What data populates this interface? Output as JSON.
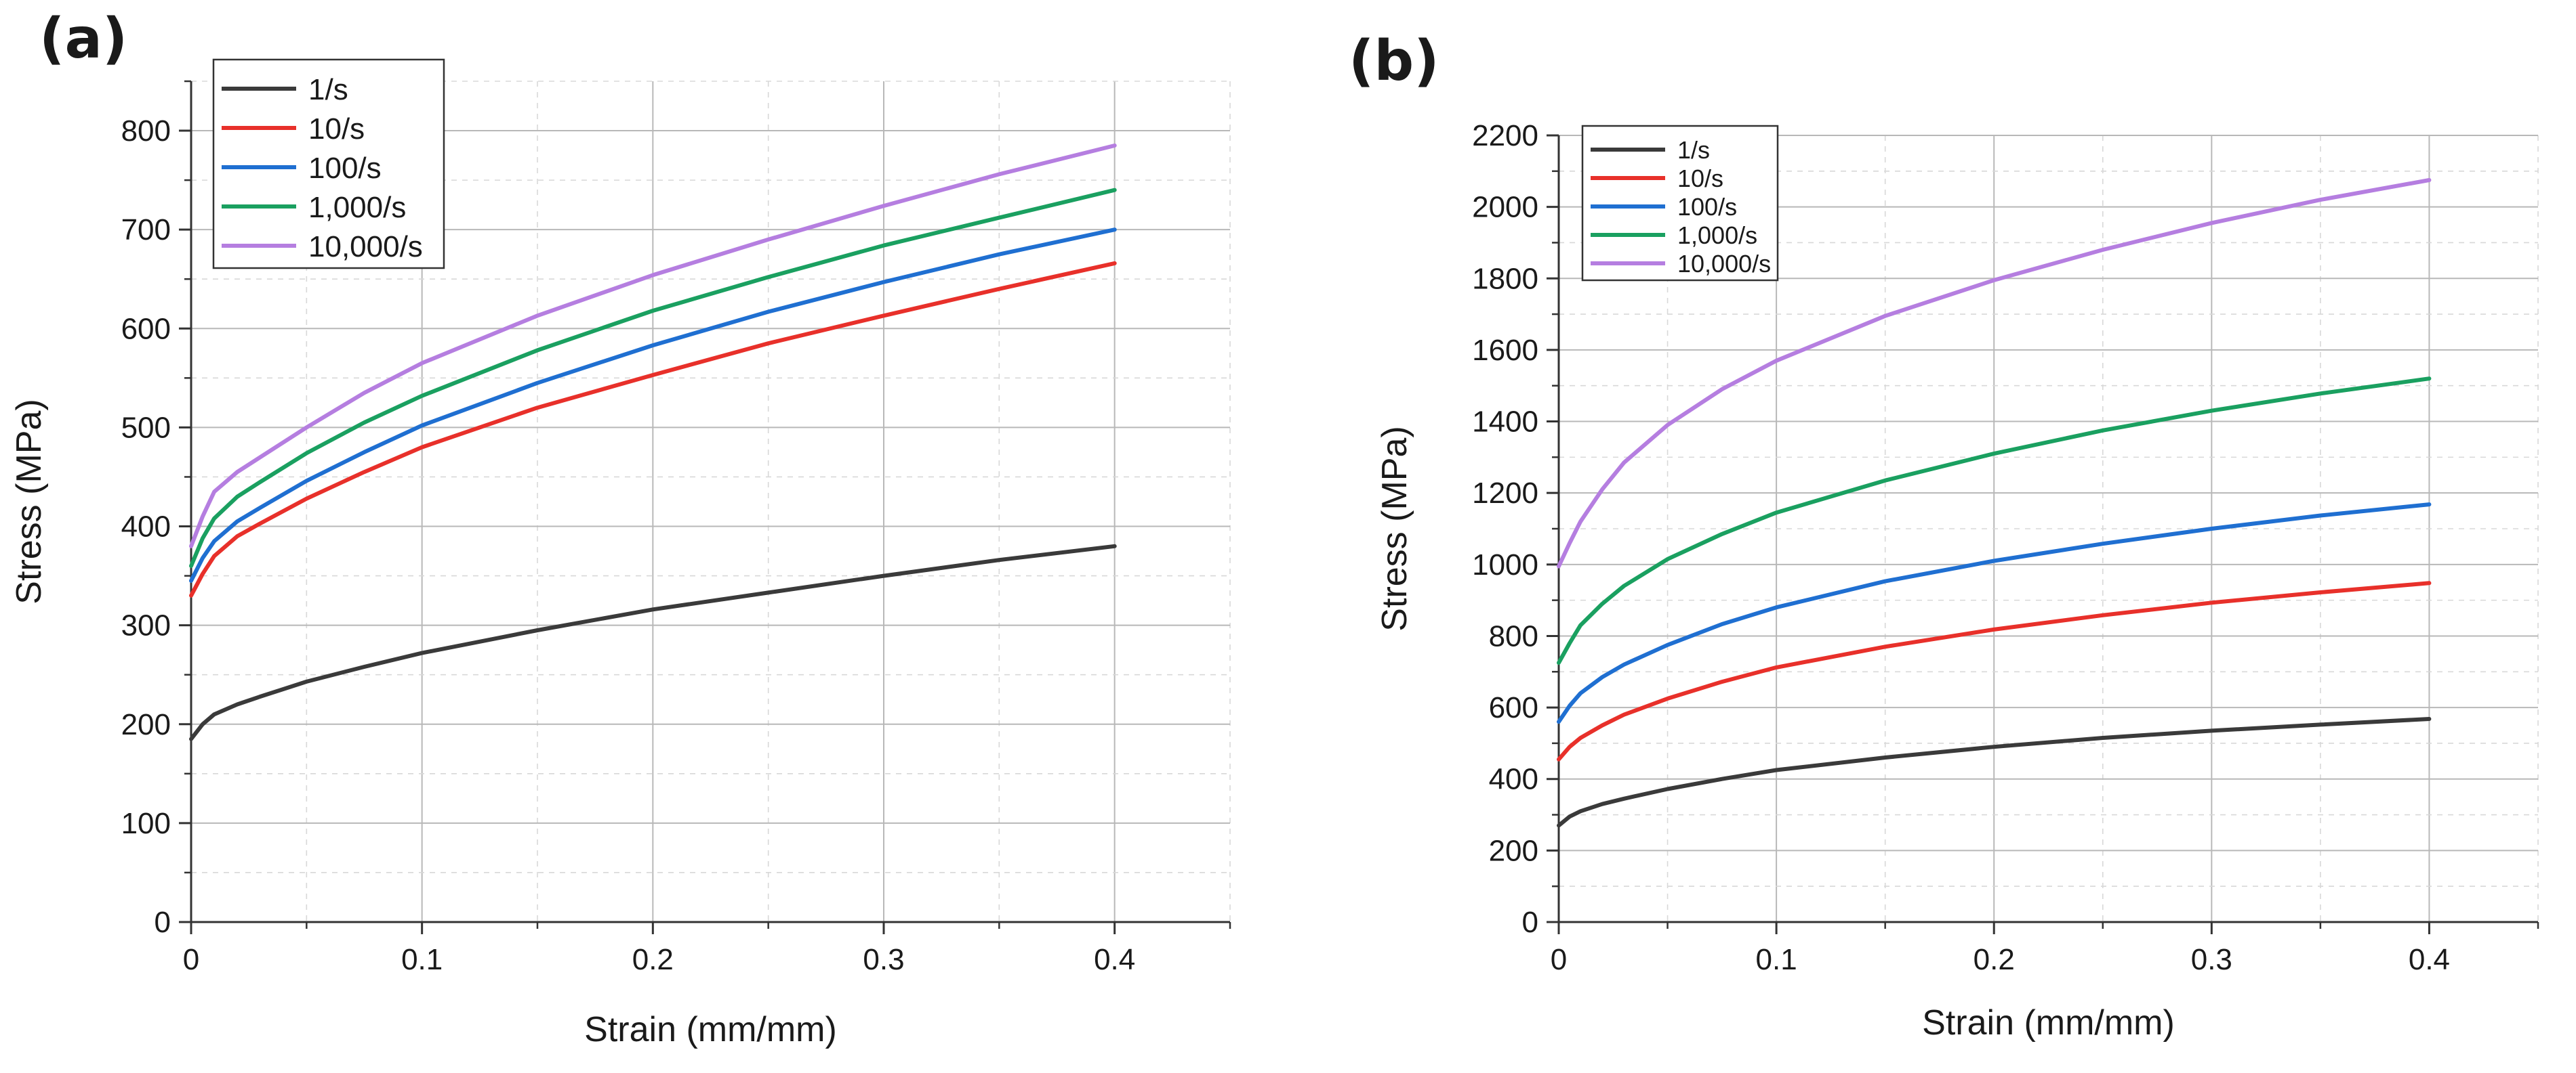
{
  "figure": {
    "panels": [
      "(a)",
      "(b)"
    ]
  },
  "chart_data": [
    {
      "panel_label": "(a)",
      "type": "line",
      "title": "",
      "xlabel": "Strain (mm/mm)",
      "ylabel": "Stress (MPa)",
      "xlim": [
        0,
        0.45
      ],
      "ylim": [
        0,
        850
      ],
      "xticks": [
        0,
        0.1,
        0.2,
        0.3,
        0.4
      ],
      "xtick_labels": [
        "0",
        "0.1",
        "0.2",
        "0.3",
        "0.4"
      ],
      "yticks": [
        0,
        100,
        200,
        300,
        400,
        500,
        600,
        700,
        800
      ],
      "ytick_labels": [
        "0",
        "100",
        "200",
        "300",
        "400",
        "500",
        "600",
        "700",
        "800"
      ],
      "grid": true,
      "legend_position": "top-left",
      "series": [
        {
          "name": "1/s",
          "color": "#3a3a3a",
          "x": [
            0,
            0.005,
            0.01,
            0.02,
            0.03,
            0.05,
            0.075,
            0.1,
            0.15,
            0.2,
            0.25,
            0.3,
            0.35,
            0.4
          ],
          "y": [
            185,
            200,
            210,
            220,
            228,
            243,
            258,
            272,
            295,
            316,
            333,
            350,
            366,
            380
          ]
        },
        {
          "name": "10/s",
          "color": "#e8302a",
          "x": [
            0,
            0.005,
            0.01,
            0.02,
            0.03,
            0.05,
            0.075,
            0.1,
            0.15,
            0.2,
            0.25,
            0.3,
            0.35,
            0.4
          ],
          "y": [
            330,
            352,
            370,
            390,
            403,
            428,
            455,
            480,
            520,
            553,
            585,
            613,
            640,
            666
          ]
        },
        {
          "name": "100/s",
          "color": "#1f6fd1",
          "x": [
            0,
            0.005,
            0.01,
            0.02,
            0.03,
            0.05,
            0.075,
            0.1,
            0.15,
            0.2,
            0.25,
            0.3,
            0.35,
            0.4
          ],
          "y": [
            345,
            368,
            385,
            405,
            419,
            446,
            475,
            502,
            545,
            583,
            617,
            647,
            675,
            700
          ]
        },
        {
          "name": "1,000/s",
          "color": "#1aa060",
          "x": [
            0,
            0.005,
            0.01,
            0.02,
            0.03,
            0.05,
            0.075,
            0.1,
            0.15,
            0.2,
            0.25,
            0.3,
            0.35,
            0.4
          ],
          "y": [
            360,
            388,
            408,
            430,
            445,
            474,
            505,
            532,
            578,
            618,
            652,
            684,
            712,
            740
          ]
        },
        {
          "name": "10,000/s",
          "color": "#b57ee0",
          "x": [
            0,
            0.005,
            0.01,
            0.02,
            0.03,
            0.05,
            0.075,
            0.1,
            0.15,
            0.2,
            0.25,
            0.3,
            0.35,
            0.4
          ],
          "y": [
            380,
            410,
            435,
            455,
            470,
            500,
            535,
            565,
            613,
            654,
            690,
            724,
            756,
            785
          ]
        }
      ]
    },
    {
      "panel_label": "(b)",
      "type": "line",
      "title": "",
      "xlabel": "Strain (mm/mm)",
      "ylabel": "Stress (MPa)",
      "xlim": [
        0,
        0.45
      ],
      "ylim": [
        0,
        2200
      ],
      "xticks": [
        0,
        0.1,
        0.2,
        0.3,
        0.4
      ],
      "xtick_labels": [
        "0",
        "0.1",
        "0.2",
        "0.3",
        "0.4"
      ],
      "yticks": [
        0,
        200,
        400,
        600,
        800,
        1000,
        1200,
        1400,
        1600,
        1800,
        2000,
        2200
      ],
      "ytick_labels": [
        "0",
        "200",
        "400",
        "600",
        "800",
        "1000",
        "1200",
        "1400",
        "1600",
        "1800",
        "2000",
        "2200"
      ],
      "grid": true,
      "legend_position": "top-left",
      "series": [
        {
          "name": "1/s",
          "color": "#3a3a3a",
          "x": [
            0,
            0.005,
            0.01,
            0.02,
            0.03,
            0.05,
            0.075,
            0.1,
            0.15,
            0.2,
            0.25,
            0.3,
            0.35,
            0.4
          ],
          "y": [
            270,
            295,
            310,
            330,
            345,
            372,
            400,
            425,
            460,
            490,
            515,
            535,
            552,
            568
          ]
        },
        {
          "name": "10/s",
          "color": "#e8302a",
          "x": [
            0,
            0.005,
            0.01,
            0.02,
            0.03,
            0.05,
            0.075,
            0.1,
            0.15,
            0.2,
            0.25,
            0.3,
            0.35,
            0.4
          ],
          "y": [
            455,
            490,
            515,
            550,
            580,
            625,
            672,
            712,
            770,
            818,
            858,
            893,
            922,
            948
          ]
        },
        {
          "name": "100/s",
          "color": "#1f6fd1",
          "x": [
            0,
            0.005,
            0.01,
            0.02,
            0.03,
            0.05,
            0.075,
            0.1,
            0.15,
            0.2,
            0.25,
            0.3,
            0.35,
            0.4
          ],
          "y": [
            560,
            605,
            640,
            685,
            720,
            775,
            833,
            880,
            953,
            1010,
            1058,
            1100,
            1137,
            1168
          ]
        },
        {
          "name": "1,000/s",
          "color": "#1aa060",
          "x": [
            0,
            0.005,
            0.01,
            0.02,
            0.03,
            0.05,
            0.075,
            0.1,
            0.15,
            0.2,
            0.25,
            0.3,
            0.35,
            0.4
          ],
          "y": [
            725,
            780,
            830,
            890,
            940,
            1015,
            1085,
            1145,
            1235,
            1310,
            1375,
            1430,
            1478,
            1520
          ]
        },
        {
          "name": "10,000/s",
          "color": "#b57ee0",
          "x": [
            0,
            0.005,
            0.01,
            0.02,
            0.03,
            0.05,
            0.075,
            0.1,
            0.15,
            0.2,
            0.25,
            0.3,
            0.35,
            0.4
          ],
          "y": [
            995,
            1060,
            1120,
            1210,
            1285,
            1390,
            1490,
            1570,
            1695,
            1795,
            1880,
            1955,
            2020,
            2075
          ]
        }
      ]
    }
  ]
}
